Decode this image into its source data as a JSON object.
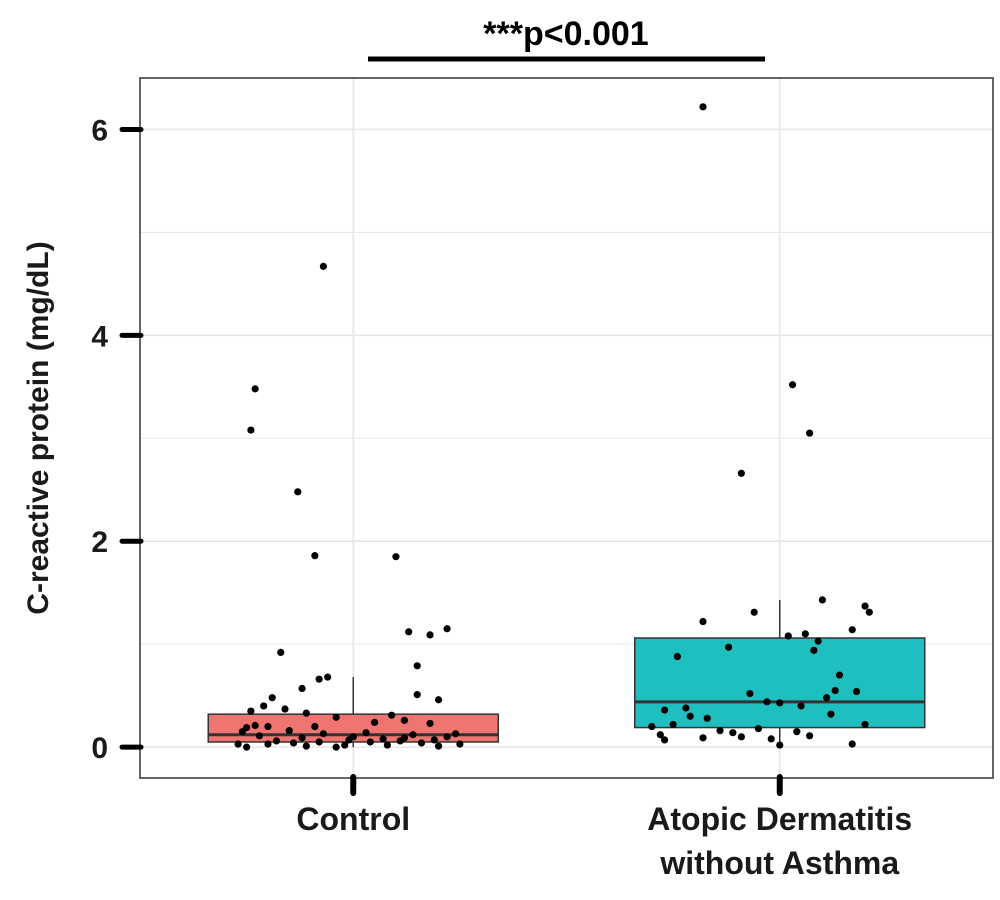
{
  "chart_data": {
    "type": "box",
    "ylabel": "C-reactive protein (mg/dL)",
    "ylim": [
      -0.3,
      6.5
    ],
    "yticks": [
      0,
      2,
      4,
      6
    ],
    "grid": true,
    "annotation": "***p<0.001",
    "categories": [
      {
        "lines": [
          "Control"
        ]
      },
      {
        "lines": [
          "Atopic Dermatitis",
          "without Asthma"
        ]
      }
    ],
    "boxes": [
      {
        "q1": 0.05,
        "median": 0.12,
        "q3": 0.32,
        "whisker_low": 0.0,
        "whisker_high": 0.68,
        "color": "#f07470"
      },
      {
        "q1": 0.19,
        "median": 0.44,
        "q3": 1.06,
        "whisker_low": 0.02,
        "whisker_high": 1.43,
        "color": "#1fbfbf"
      }
    ],
    "points": [
      [
        [
          -0.07,
          4.67
        ],
        [
          -0.23,
          3.48
        ],
        [
          -0.24,
          3.08
        ],
        [
          -0.13,
          2.48
        ],
        [
          -0.09,
          1.86
        ],
        [
          0.1,
          1.85
        ],
        [
          0.22,
          1.15
        ],
        [
          0.13,
          1.12
        ],
        [
          0.18,
          1.09
        ],
        [
          -0.17,
          0.92
        ],
        [
          0.15,
          0.79
        ],
        [
          -0.06,
          0.68
        ],
        [
          -0.08,
          0.66
        ],
        [
          -0.12,
          0.57
        ],
        [
          0.15,
          0.51
        ],
        [
          0.2,
          0.46
        ],
        [
          -0.19,
          0.48
        ],
        [
          -0.21,
          0.4
        ],
        [
          -0.24,
          0.35
        ],
        [
          -0.16,
          0.37
        ],
        [
          0.09,
          0.31
        ],
        [
          -0.11,
          0.33
        ],
        [
          0.12,
          0.26
        ],
        [
          -0.04,
          0.29
        ],
        [
          0.05,
          0.24
        ],
        [
          -0.23,
          0.21
        ],
        [
          -0.25,
          0.19
        ],
        [
          -0.2,
          0.2
        ],
        [
          0.18,
          0.23
        ],
        [
          -0.26,
          0.15
        ],
        [
          -0.15,
          0.16
        ],
        [
          -0.07,
          0.13
        ],
        [
          0.03,
          0.14
        ],
        [
          0.14,
          0.12
        ],
        [
          0.22,
          0.1
        ],
        [
          -0.22,
          0.11
        ],
        [
          -0.12,
          0.09
        ],
        [
          0.0,
          0.1
        ],
        [
          0.07,
          0.08
        ],
        [
          0.19,
          0.07
        ],
        [
          -0.18,
          0.06
        ],
        [
          -0.08,
          0.05
        ],
        [
          0.04,
          0.05
        ],
        [
          0.11,
          0.06
        ],
        [
          -0.27,
          0.03
        ],
        [
          -0.2,
          0.03
        ],
        [
          -0.02,
          0.02
        ],
        [
          0.16,
          0.04
        ],
        [
          0.25,
          0.03
        ],
        [
          -0.25,
          0.0
        ],
        [
          -0.11,
          0.01
        ],
        [
          -0.04,
          0.0
        ],
        [
          0.08,
          0.02
        ],
        [
          0.2,
          0.01
        ],
        [
          -0.14,
          0.04
        ],
        [
          0.12,
          0.09
        ],
        [
          -0.01,
          0.07
        ],
        [
          0.24,
          0.13
        ],
        [
          -0.09,
          0.2
        ]
      ],
      [
        [
          -0.18,
          6.22
        ],
        [
          0.03,
          3.52
        ],
        [
          0.07,
          3.05
        ],
        [
          -0.09,
          2.66
        ],
        [
          0.1,
          1.43
        ],
        [
          0.2,
          1.37
        ],
        [
          0.21,
          1.31
        ],
        [
          -0.06,
          1.31
        ],
        [
          -0.18,
          1.22
        ],
        [
          0.17,
          1.14
        ],
        [
          0.06,
          1.1
        ],
        [
          0.02,
          1.08
        ],
        [
          0.09,
          1.03
        ],
        [
          -0.12,
          0.97
        ],
        [
          0.08,
          0.94
        ],
        [
          -0.24,
          0.88
        ],
        [
          0.14,
          0.7
        ],
        [
          0.18,
          0.54
        ],
        [
          0.13,
          0.55
        ],
        [
          -0.07,
          0.52
        ],
        [
          0.11,
          0.48
        ],
        [
          0.0,
          0.43
        ],
        [
          -0.03,
          0.44
        ],
        [
          0.05,
          0.4
        ],
        [
          -0.22,
          0.38
        ],
        [
          -0.27,
          0.36
        ],
        [
          -0.21,
          0.3
        ],
        [
          0.12,
          0.32
        ],
        [
          -0.17,
          0.28
        ],
        [
          -0.25,
          0.22
        ],
        [
          0.2,
          0.22
        ],
        [
          -0.3,
          0.2
        ],
        [
          -0.05,
          0.18
        ],
        [
          0.04,
          0.15
        ],
        [
          -0.14,
          0.16
        ],
        [
          -0.28,
          0.12
        ],
        [
          0.07,
          0.11
        ],
        [
          -0.09,
          0.1
        ],
        [
          -0.18,
          0.09
        ],
        [
          -0.02,
          0.08
        ],
        [
          -0.27,
          0.07
        ],
        [
          0.0,
          0.02
        ],
        [
          0.17,
          0.03
        ],
        [
          -0.11,
          0.14
        ]
      ]
    ]
  }
}
